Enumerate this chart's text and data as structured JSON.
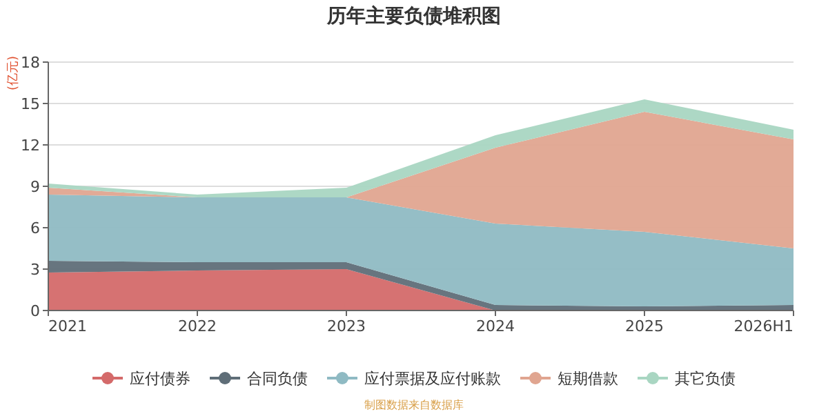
{
  "chart_data": {
    "type": "area",
    "title": "历年主要负债堆积图",
    "ylabel": "(亿元)",
    "categories": [
      "2021",
      "2022",
      "2023",
      "2024",
      "2025",
      "2026H1"
    ],
    "stacked": true,
    "ylim": [
      0,
      18
    ],
    "yticks": [
      0,
      3,
      6,
      9,
      12,
      15,
      18
    ],
    "grid": "y",
    "legend": "bottom",
    "series": [
      {
        "name": "应付债券",
        "color": "#d46a6a",
        "values": [
          2.75,
          2.9,
          3.0,
          0,
          0,
          0
        ]
      },
      {
        "name": "合同负债",
        "color": "#5f6e78",
        "values": [
          0.85,
          0.6,
          0.5,
          0.4,
          0.3,
          0.4
        ]
      },
      {
        "name": "应付票据及应付账款",
        "color": "#8fbac3",
        "values": [
          4.8,
          4.7,
          4.7,
          5.9,
          5.4,
          4.1
        ]
      },
      {
        "name": "短期借款",
        "color": "#e0a590",
        "values": [
          0.5,
          0,
          0,
          5.5,
          8.7,
          7.9
        ]
      },
      {
        "name": "其它负债",
        "color": "#a9d6c2",
        "values": [
          0.3,
          0.2,
          0.7,
          0.9,
          0.9,
          0.7
        ]
      }
    ],
    "annotations": [
      "制图数据来自数据库"
    ]
  }
}
